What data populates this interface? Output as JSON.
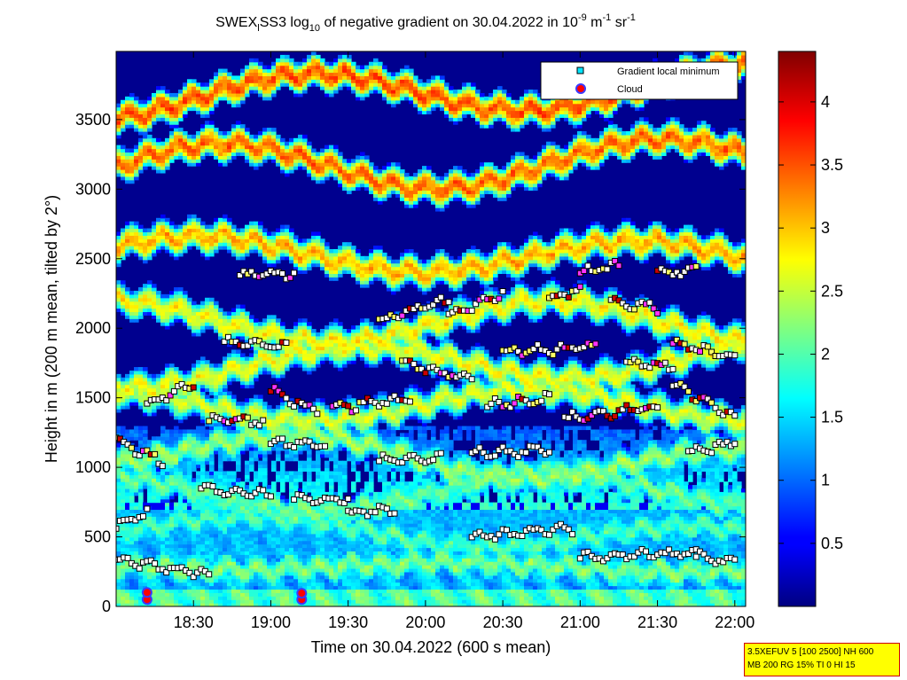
{
  "chart_data": {
    "type": "heatmap",
    "title": {
      "part1": "SWEX",
      "sub1": "l",
      "part2": "SS3 log",
      "sub2": "10",
      "part3": " of negative gradient on 30.04.2022 in 10",
      "sup1": "-9",
      "part4": " m",
      "sup2": "-1",
      "part5": " sr",
      "sup3": "-1"
    },
    "xlabel": "Time on 30.04.2022 (600 s mean)",
    "ylabel": "Height in m (200 m mean, tilted by 2°)",
    "x_ticks": [
      "18:30",
      "19:00",
      "19:30",
      "20:00",
      "20:30",
      "21:00",
      "21:30",
      "22:00"
    ],
    "x_tick_hours": [
      18.5,
      19.0,
      19.5,
      20.0,
      20.5,
      21.0,
      21.5,
      22.0
    ],
    "xlim_hours": [
      18.0,
      22.07
    ],
    "y_ticks": [
      0,
      500,
      1000,
      1500,
      2000,
      2500,
      3000,
      3500
    ],
    "ylim": [
      0,
      3990
    ],
    "colorbar": {
      "ticks": [
        "0.5",
        "1",
        "1.5",
        "2",
        "2.5",
        "3",
        "3.5",
        "4"
      ],
      "tick_values": [
        0.5,
        1.0,
        1.5,
        2.0,
        2.5,
        3.0,
        3.5,
        4.0
      ],
      "range": [
        0.0,
        4.4
      ],
      "colormap": "jet"
    },
    "legend": {
      "position": "top-right",
      "entries": [
        {
          "label": "Gradient local minimum",
          "marker": "square",
          "color": "#00e5ff"
        },
        {
          "label": "Cloud",
          "marker": "circle",
          "color": "#ff0000"
        }
      ]
    },
    "layers": [
      {
        "h0": 300,
        "h1": 280,
        "a": 30,
        "v": 2.2
      },
      {
        "h0": 580,
        "h1": 480,
        "a": 90,
        "v": 2.0
      },
      {
        "h0": 800,
        "h1": 850,
        "a": 130,
        "v": 2.1
      },
      {
        "h0": 1150,
        "h1": 1000,
        "a": 130,
        "v": 2.3
      },
      {
        "h0": 1450,
        "h1": 1450,
        "a": 110,
        "v": 2.6
      },
      {
        "h0": 1700,
        "h1": 1800,
        "a": 130,
        "v": 2.7
      },
      {
        "h0": 2050,
        "h1": 2050,
        "a": 150,
        "v": 2.8
      },
      {
        "h0": 2550,
        "h1": 2500,
        "a": 120,
        "v": 3.1
      },
      {
        "h0": 3150,
        "h1": 3200,
        "a": 170,
        "v": 3.4
      },
      {
        "h0": 3650,
        "h1": 3750,
        "a": 150,
        "v": 3.5
      }
    ],
    "minima_tracks": [
      {
        "t0": 18.0,
        "t1": 18.6,
        "h0": 330,
        "h1": 230
      },
      {
        "t0": 21.0,
        "t1": 21.75,
        "h0": 350,
        "h1": 390
      },
      {
        "t0": 21.75,
        "t1": 22.0,
        "h0": 360,
        "h1": 330
      },
      {
        "t0": 18.0,
        "t1": 18.2,
        "h0": 570,
        "h1": 680
      },
      {
        "t0": 20.3,
        "t1": 20.95,
        "h0": 500,
        "h1": 560
      },
      {
        "t0": 19.5,
        "t1": 19.8,
        "h0": 670,
        "h1": 700
      },
      {
        "t0": 18.55,
        "t1": 19.0,
        "h0": 840,
        "h1": 800
      },
      {
        "t0": 19.15,
        "t1": 19.5,
        "h0": 780,
        "h1": 760
      },
      {
        "t0": 18.0,
        "t1": 18.3,
        "h0": 1200,
        "h1": 1040
      },
      {
        "t0": 19.0,
        "t1": 19.35,
        "h0": 1180,
        "h1": 1160
      },
      {
        "t0": 19.7,
        "t1": 20.1,
        "h0": 1060,
        "h1": 1060
      },
      {
        "t0": 20.3,
        "t1": 20.8,
        "h0": 1100,
        "h1": 1120
      },
      {
        "t0": 21.7,
        "t1": 22.0,
        "h0": 1100,
        "h1": 1180
      },
      {
        "t0": 18.2,
        "t1": 18.5,
        "h0": 1450,
        "h1": 1600
      },
      {
        "t0": 18.6,
        "t1": 18.95,
        "h0": 1350,
        "h1": 1330
      },
      {
        "t0": 19.0,
        "t1": 19.3,
        "h0": 1550,
        "h1": 1400
      },
      {
        "t0": 19.4,
        "t1": 19.9,
        "h0": 1420,
        "h1": 1500
      },
      {
        "t0": 20.4,
        "t1": 20.8,
        "h0": 1450,
        "h1": 1500
      },
      {
        "t0": 20.9,
        "t1": 21.5,
        "h0": 1350,
        "h1": 1430
      },
      {
        "t0": 21.6,
        "t1": 22.0,
        "h0": 1600,
        "h1": 1350
      },
      {
        "t0": 18.7,
        "t1": 19.1,
        "h0": 1900,
        "h1": 1880
      },
      {
        "t0": 19.85,
        "t1": 20.3,
        "h0": 1750,
        "h1": 1630
      },
      {
        "t0": 20.5,
        "t1": 21.1,
        "h0": 1830,
        "h1": 1860
      },
      {
        "t0": 21.3,
        "t1": 21.6,
        "h0": 1750,
        "h1": 1720
      },
      {
        "t0": 21.6,
        "t1": 22.0,
        "h0": 1900,
        "h1": 1780
      },
      {
        "t0": 19.7,
        "t1": 20.15,
        "h0": 2050,
        "h1": 2200
      },
      {
        "t0": 20.15,
        "t1": 20.5,
        "h0": 2100,
        "h1": 2250
      },
      {
        "t0": 21.2,
        "t1": 21.5,
        "h0": 2200,
        "h1": 2150
      },
      {
        "t0": 18.8,
        "t1": 19.15,
        "h0": 2380,
        "h1": 2400
      },
      {
        "t0": 21.5,
        "t1": 21.75,
        "h0": 2400,
        "h1": 2420
      },
      {
        "t0": 20.8,
        "t1": 21.0,
        "h0": 2200,
        "h1": 2290
      },
      {
        "t0": 21.0,
        "t1": 21.25,
        "h0": 2400,
        "h1": 2450
      }
    ],
    "clouds": [
      {
        "t": 18.2,
        "h": 50
      },
      {
        "t": 18.2,
        "h": 100
      },
      {
        "t": 19.2,
        "h": 50
      },
      {
        "t": 19.2,
        "h": 95
      }
    ]
  },
  "info_box": {
    "line1": "3.5XEFUV 5 [100 2500] NH 600",
    "line2": "MB 200 RG 15% TI 0 HI 15"
  }
}
